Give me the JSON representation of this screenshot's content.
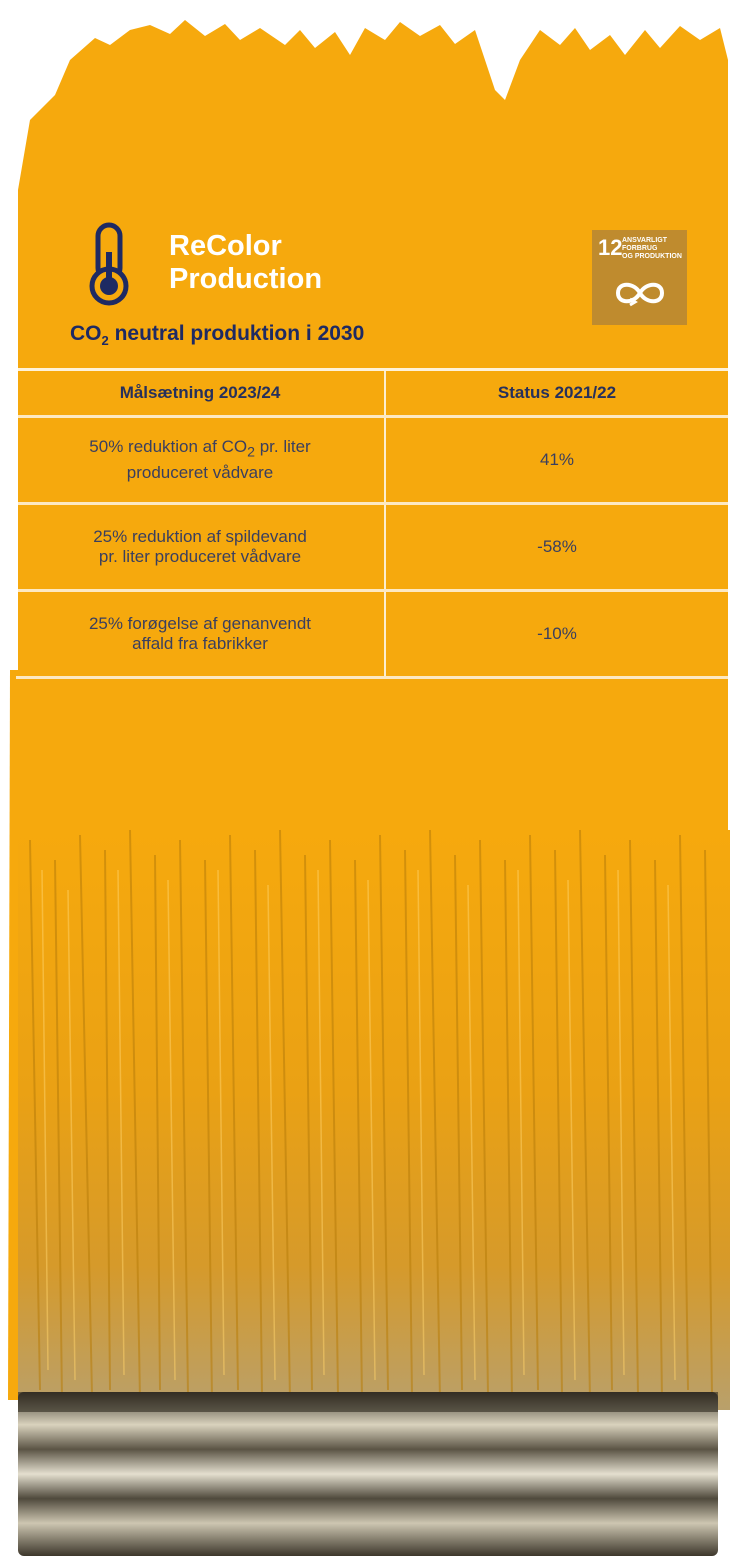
{
  "colors": {
    "paint": "#f6a90d",
    "navy": "#1e2a63",
    "sdg_bg": "#bf8b2e"
  },
  "header": {
    "icon": "thermometer-icon",
    "title_line1": "ReColor",
    "title_line2": "Production"
  },
  "sdg": {
    "number": "12",
    "label_line1": "ANSVARLIGT",
    "label_line2": "FORBRUG",
    "label_line3": "OG PRODUKTION",
    "icon": "infinity-icon"
  },
  "subtitle": {
    "pre": "CO",
    "sub": "2",
    "post": " neutral produktion i 2030"
  },
  "table": {
    "headers": [
      "Målsætning 2023/24",
      "Status 2021/22"
    ],
    "row1": {
      "goal_pre": "50% reduktion af CO",
      "goal_sub": "2",
      "goal_post": " pr. liter",
      "goal_line2": "produceret vådvare",
      "status": "41%"
    },
    "row2": {
      "goal_line1": "25% reduktion af spildevand",
      "goal_line2": "pr. liter produceret vådvare",
      "status": "-58%"
    },
    "row3": {
      "goal_line1": "25% forøgelse af genanvendt",
      "goal_line2": "affald fra fabrikker",
      "status": "-10%"
    }
  }
}
